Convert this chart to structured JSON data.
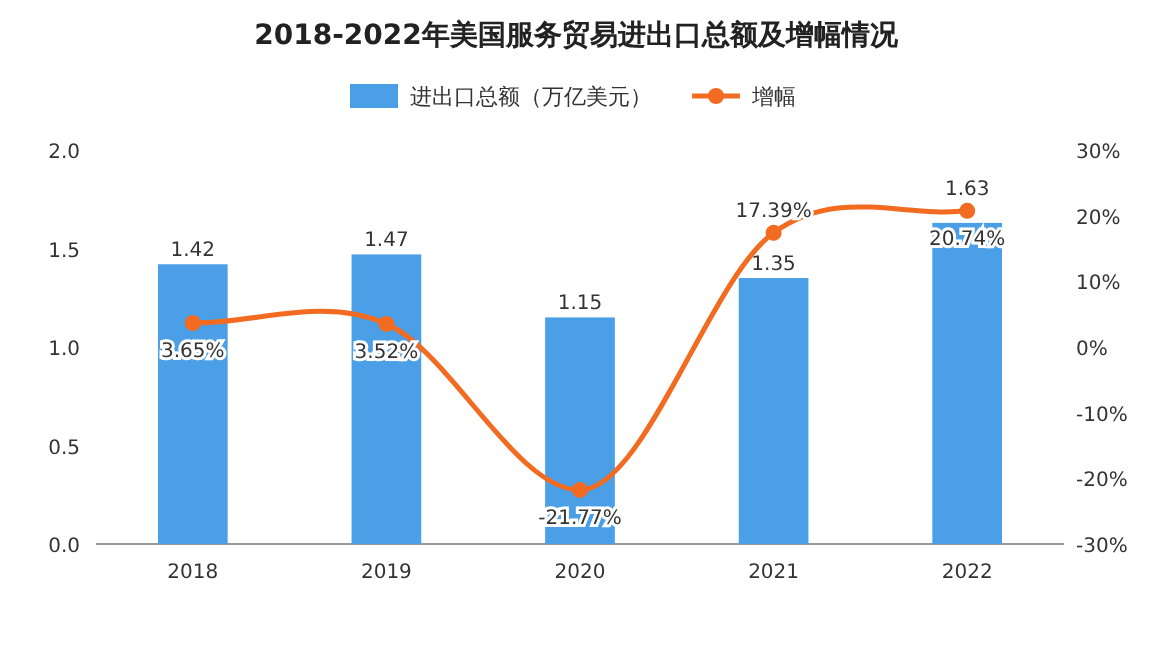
{
  "chart_data": {
    "type": "bar",
    "title": "2018-2022年美国服务贸易进出口总额及增幅情况",
    "categories": [
      "2018",
      "2019",
      "2020",
      "2021",
      "2022"
    ],
    "series": [
      {
        "name": "进出口总额（万亿美元）",
        "color": "#4a9fe6",
        "values": [
          1.42,
          1.47,
          1.15,
          1.35,
          1.63
        ],
        "value_labels": [
          "1.42",
          "1.47",
          "1.15",
          "1.35",
          "1.63"
        ]
      },
      {
        "name": "增幅",
        "type": "line",
        "axis": "y2",
        "color": "#f26b21",
        "values": [
          3.65,
          3.52,
          -21.77,
          17.39,
          20.74
        ],
        "value_labels": [
          "3.65%",
          "3.52%",
          "-21.77%",
          "17.39%",
          "20.74%"
        ]
      }
    ],
    "ylim": [
      0,
      2
    ],
    "yticks": [
      {
        "value": 0,
        "label": "0.0"
      },
      {
        "value": 0.5,
        "label": "0.5"
      },
      {
        "value": 1,
        "label": "1.0"
      },
      {
        "value": 1.5,
        "label": "1.5"
      },
      {
        "value": 2,
        "label": "2.0"
      }
    ],
    "y2lim": [
      -30,
      30
    ],
    "y2ticks": [
      {
        "value": -30,
        "label": "-30%"
      },
      {
        "value": -20,
        "label": "-20%"
      },
      {
        "value": -10,
        "label": "-10%"
      },
      {
        "value": 0,
        "label": "0%"
      },
      {
        "value": 10,
        "label": "10%"
      },
      {
        "value": 20,
        "label": "20%"
      },
      {
        "value": 30,
        "label": "30%"
      }
    ],
    "marker": "circle",
    "line_style": "solid",
    "grid": false,
    "legend": "top"
  }
}
